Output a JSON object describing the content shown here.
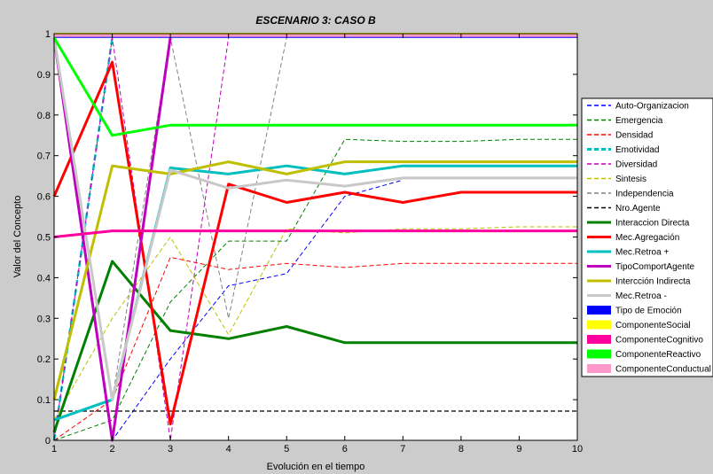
{
  "chart_data": {
    "type": "line",
    "title": "ESCENARIO 3: CASO B",
    "xlabel": "Evolución en el tiempo",
    "ylabel": "Valor del Concepto",
    "xlim": [
      1,
      10
    ],
    "ylim": [
      0,
      1
    ],
    "x_ticks": [
      "1",
      "2",
      "3",
      "4",
      "5",
      "6",
      "7",
      "8",
      "9",
      "10"
    ],
    "y_ticks": [
      "0",
      "0.1",
      "0.2",
      "0.3",
      "0.4",
      "0.5",
      "0.6",
      "0.7",
      "0.8",
      "0.9",
      "1"
    ],
    "grid": false,
    "legend_position": "right",
    "series": [
      {
        "name": "Auto-Organizacion",
        "color": "#0000ff",
        "style": "dashed",
        "width": 1,
        "points": [
          [
            1,
            0.0
          ],
          [
            2,
            0.0
          ],
          [
            3,
            0.2
          ],
          [
            4,
            0.38
          ],
          [
            5,
            0.41
          ],
          [
            6,
            0.6
          ],
          [
            7,
            0.64
          ]
        ]
      },
      {
        "name": "Emergencia",
        "color": "#008000",
        "style": "dashed",
        "width": 1,
        "points": [
          [
            1,
            0.0
          ],
          [
            2,
            0.05
          ],
          [
            3,
            0.34
          ],
          [
            4,
            0.49
          ],
          [
            5,
            0.49
          ],
          [
            6,
            0.74
          ],
          [
            7,
            0.735
          ],
          [
            8,
            0.735
          ],
          [
            9,
            0.74
          ],
          [
            10,
            0.74
          ]
        ]
      },
      {
        "name": "Densidad",
        "color": "#ff0000",
        "style": "dashed",
        "width": 1,
        "points": [
          [
            1,
            0.0
          ],
          [
            2,
            0.1
          ],
          [
            3,
            0.45
          ],
          [
            4,
            0.42
          ],
          [
            5,
            0.435
          ],
          [
            6,
            0.425
          ],
          [
            7,
            0.435
          ],
          [
            8,
            0.435
          ],
          [
            9,
            0.435
          ],
          [
            10,
            0.435
          ]
        ]
      },
      {
        "name": "Emotividad",
        "color": "#00bfbf",
        "style": "dashed",
        "width": 2.5,
        "points": [
          [
            1,
            0.0
          ],
          [
            2,
            0.99
          ]
        ]
      },
      {
        "name": "Diversidad",
        "color": "#bf00bf",
        "style": "dashed",
        "width": 1,
        "points": [
          [
            1,
            0.0
          ],
          [
            2,
            0.99
          ],
          [
            3,
            0.0
          ],
          [
            4,
            0.99
          ]
        ]
      },
      {
        "name": "Sintesis",
        "color": "#bfbf00",
        "style": "dashed",
        "width": 1,
        "points": [
          [
            1,
            0.05
          ],
          [
            2,
            0.3
          ],
          [
            3,
            0.5
          ],
          [
            4,
            0.26
          ],
          [
            5,
            0.52
          ],
          [
            6,
            0.51
          ],
          [
            7,
            0.52
          ],
          [
            8,
            0.52
          ],
          [
            9,
            0.525
          ],
          [
            10,
            0.525
          ]
        ]
      },
      {
        "name": "Independencia",
        "color": "#808080",
        "style": "dashed",
        "width": 1,
        "points": [
          [
            1,
            0.99
          ],
          [
            2,
            0.1
          ],
          [
            3,
            0.99
          ],
          [
            4,
            0.3
          ],
          [
            5,
            0.99
          ]
        ]
      },
      {
        "name": "Nro.Agente",
        "color": "#000000",
        "style": "dashed",
        "width": 1.2,
        "points": [
          [
            1,
            0.072
          ],
          [
            10,
            0.072
          ]
        ]
      },
      {
        "name": "Interaccion Directa",
        "color": "#008000",
        "style": "solid",
        "width": 3,
        "points": [
          [
            1,
            0.02
          ],
          [
            2,
            0.44
          ],
          [
            3,
            0.27
          ],
          [
            4,
            0.25
          ],
          [
            5,
            0.28
          ],
          [
            6,
            0.24
          ],
          [
            7,
            0.24
          ],
          [
            8,
            0.24
          ],
          [
            9,
            0.24
          ],
          [
            10,
            0.24
          ]
        ]
      },
      {
        "name": "Mec.Agregación",
        "color": "#ff0000",
        "style": "solid",
        "width": 3,
        "points": [
          [
            1,
            0.6
          ],
          [
            2,
            0.93
          ],
          [
            3,
            0.04
          ],
          [
            4,
            0.63
          ],
          [
            5,
            0.585
          ],
          [
            6,
            0.61
          ],
          [
            7,
            0.585
          ],
          [
            8,
            0.61
          ],
          [
            9,
            0.61
          ],
          [
            10,
            0.61
          ]
        ]
      },
      {
        "name": "Mec.Retroa +",
        "color": "#00bfbf",
        "style": "solid",
        "width": 3,
        "points": [
          [
            1,
            0.05
          ],
          [
            2,
            0.1
          ],
          [
            3,
            0.67
          ],
          [
            4,
            0.655
          ],
          [
            5,
            0.675
          ],
          [
            6,
            0.655
          ],
          [
            7,
            0.675
          ],
          [
            8,
            0.675
          ],
          [
            9,
            0.675
          ],
          [
            10,
            0.675
          ]
        ]
      },
      {
        "name": "TipoComportAgente",
        "color": "#bf00bf",
        "style": "solid",
        "width": 3,
        "points": [
          [
            1,
            0.99
          ],
          [
            2,
            0.0
          ],
          [
            3,
            0.99
          ]
        ]
      },
      {
        "name": "Intercción Indirecta",
        "color": "#bfbf00",
        "style": "solid",
        "width": 3,
        "points": [
          [
            1,
            0.1
          ],
          [
            2,
            0.675
          ],
          [
            3,
            0.655
          ],
          [
            4,
            0.685
          ],
          [
            5,
            0.655
          ],
          [
            6,
            0.685
          ],
          [
            7,
            0.685
          ],
          [
            8,
            0.685
          ],
          [
            9,
            0.685
          ],
          [
            10,
            0.685
          ]
        ]
      },
      {
        "name": "Mec.Retroa -",
        "color": "#c8c8c8",
        "style": "solid",
        "width": 3,
        "points": [
          [
            1,
            0.99
          ],
          [
            2,
            0.1
          ],
          [
            3,
            0.665
          ],
          [
            4,
            0.62
          ],
          [
            5,
            0.64
          ],
          [
            6,
            0.625
          ],
          [
            7,
            0.645
          ],
          [
            8,
            0.645
          ],
          [
            9,
            0.645
          ],
          [
            10,
            0.645
          ]
        ]
      },
      {
        "name": "Tipo de Emoción",
        "color": "#0000ff",
        "style": "solid",
        "width": 3,
        "points": [
          [
            1,
            0.993
          ],
          [
            10,
            0.993
          ]
        ]
      },
      {
        "name": "ComponenteSocial",
        "color": "#ffff00",
        "style": "solid",
        "width": 3,
        "points": [
          [
            1,
            0.999
          ],
          [
            10,
            0.999
          ]
        ]
      },
      {
        "name": "ComponenteCognitivo",
        "color": "#ff00a0",
        "style": "solid",
        "width": 3,
        "points": [
          [
            1,
            0.5
          ],
          [
            2,
            0.515
          ],
          [
            3,
            0.515
          ],
          [
            4,
            0.515
          ],
          [
            5,
            0.515
          ],
          [
            6,
            0.515
          ],
          [
            7,
            0.515
          ],
          [
            8,
            0.515
          ],
          [
            9,
            0.515
          ],
          [
            10,
            0.515
          ]
        ]
      },
      {
        "name": "ComponenteReactivo",
        "color": "#00ff00",
        "style": "solid",
        "width": 3,
        "points": [
          [
            1,
            0.99
          ],
          [
            2,
            0.75
          ],
          [
            3,
            0.775
          ],
          [
            4,
            0.775
          ],
          [
            5,
            0.775
          ],
          [
            6,
            0.775
          ],
          [
            7,
            0.775
          ],
          [
            8,
            0.775
          ],
          [
            9,
            0.775
          ],
          [
            10,
            0.775
          ]
        ]
      },
      {
        "name": "ComponenteConductual",
        "color": "#ff99cc",
        "style": "solid",
        "width": 3,
        "points": [
          [
            1,
            0.995
          ],
          [
            10,
            0.995
          ]
        ]
      }
    ]
  }
}
